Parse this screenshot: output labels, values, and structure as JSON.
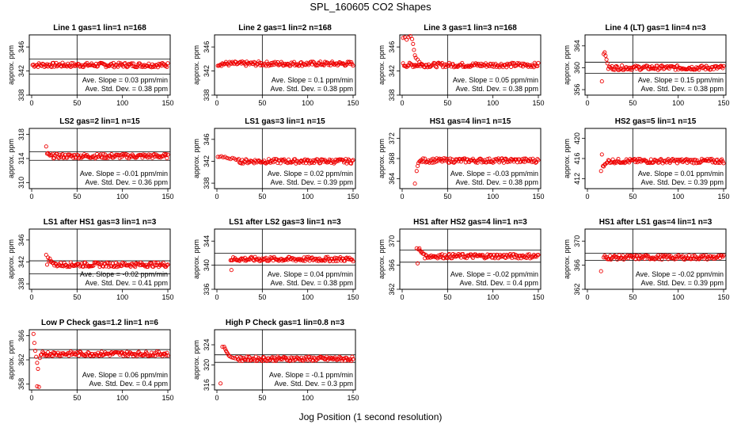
{
  "page": {
    "title": "SPL_160605  CO2 Shapes",
    "xlabel": "Jog Position (1 second resolution)"
  },
  "colors": {
    "points": "#ee0000",
    "axes": "#000000"
  },
  "chart_data": [
    {
      "type": "scatter",
      "title": "Line 1 gas=1 lin=1 n=168",
      "ylabel": "approx. ppm",
      "xlim": [
        0,
        150
      ],
      "ylim": [
        338,
        348
      ],
      "yticks": [
        338,
        342,
        346
      ],
      "xticks": [
        0,
        50,
        100,
        150
      ],
      "hlines": [
        344,
        341.5
      ],
      "vline": 50,
      "slope_text": "Ave. Slope = 0.03  ppm/min",
      "std_text": "Ave. Std. Dev. = 0.38  ppm",
      "x_start": 1,
      "x_end": 150,
      "level": 343
    },
    {
      "type": "scatter",
      "title": "Line 2 gas=1 lin=2 n=168",
      "ylabel": "approx. ppm",
      "xlim": [
        0,
        150
      ],
      "ylim": [
        338,
        348
      ],
      "yticks": [
        338,
        342,
        346
      ],
      "xticks": [
        0,
        50,
        100,
        150
      ],
      "hlines": [],
      "vline": 50,
      "slope_text": "Ave. Slope = 0.1  ppm/min",
      "std_text": "Ave. Std. Dev. = 0.38  ppm",
      "x_start": 1,
      "x_end": 150,
      "level": 343.2
    },
    {
      "type": "scatter",
      "title": "Line 3 gas=1 lin=3 n=168",
      "ylabel": "approx. ppm",
      "xlim": [
        0,
        150
      ],
      "ylim": [
        338,
        348
      ],
      "yticks": [
        338,
        342,
        346
      ],
      "xticks": [
        0,
        50,
        100,
        150
      ],
      "hlines": [],
      "vline": 50,
      "slope_text": "Ave. Slope = 0.05  ppm/min",
      "std_text": "Ave. Std. Dev. = 0.38  ppm",
      "x_start": 1,
      "x_end": 150,
      "level": 343,
      "transient": [
        [
          1,
          347.5
        ],
        [
          3,
          347.6
        ],
        [
          5,
          347.2
        ],
        [
          7,
          347.6
        ],
        [
          9,
          347.8
        ],
        [
          11,
          347.3
        ],
        [
          12,
          346.5
        ],
        [
          13,
          345.5
        ],
        [
          14,
          344.6
        ],
        [
          15,
          344.2
        ],
        [
          17,
          343.9
        ],
        [
          19,
          343.5
        ],
        [
          21,
          343.2
        ]
      ]
    },
    {
      "type": "scatter",
      "title": "Line 4 (LT) gas=1 lin=4 n=3",
      "ylabel": "approx. ppm",
      "xlim": [
        0,
        150
      ],
      "ylim": [
        355,
        366
      ],
      "yticks": [
        356,
        360,
        364
      ],
      "xticks": [
        0,
        50,
        100,
        150
      ],
      "hlines": [
        361,
        359
      ],
      "vline": 50,
      "slope_text": "Ave. Slope = 0.15  ppm/min",
      "std_text": "Ave. Std. Dev. = 0.38  ppm",
      "x_start": 23,
      "x_end": 150,
      "level": 360,
      "transient": [
        [
          16,
          357.5
        ],
        [
          18,
          362.5
        ],
        [
          19,
          362.8
        ],
        [
          20,
          362.2
        ],
        [
          21,
          361.5
        ],
        [
          22,
          360.8
        ]
      ]
    },
    {
      "type": "scatter",
      "title": "LS2 gas=2 lin=1 n=15",
      "ylabel": "approx. ppm",
      "xlim": [
        0,
        150
      ],
      "ylim": [
        309,
        319
      ],
      "yticks": [
        310,
        314,
        318
      ],
      "xticks": [
        0,
        50,
        100,
        150
      ],
      "hlines": [
        315.1,
        313.7
      ],
      "vline": 50,
      "slope_text": "Ave. Slope = -0.01  ppm/min",
      "std_text": "Ave. Std. Dev. = 0.36  ppm",
      "x_start": 21,
      "x_end": 150,
      "level": 314.4,
      "transient": [
        [
          16,
          316
        ],
        [
          17,
          314.8
        ],
        [
          18,
          314.9
        ],
        [
          19,
          314.7
        ],
        [
          20,
          314.5
        ]
      ]
    },
    {
      "type": "scatter",
      "title": "LS1 gas=3 lin=1 n=15",
      "ylabel": "approx. ppm",
      "xlim": [
        0,
        150
      ],
      "ylim": [
        337,
        348
      ],
      "yticks": [
        338,
        342,
        346
      ],
      "xticks": [
        0,
        50,
        100,
        150
      ],
      "hlines": [],
      "vline": 50,
      "slope_text": "Ave. Slope = 0.02  ppm/min",
      "std_text": "Ave. Std. Dev. = 0.39  ppm",
      "x_start": 24,
      "x_end": 150,
      "level": 342,
      "transient": [
        [
          1,
          342.8
        ],
        [
          3,
          342.8
        ],
        [
          5,
          342.9
        ],
        [
          7,
          342.7
        ],
        [
          9,
          342.8
        ],
        [
          11,
          342.6
        ],
        [
          13,
          342.5
        ],
        [
          15,
          342.4
        ],
        [
          17,
          342.6
        ],
        [
          19,
          342.5
        ],
        [
          21,
          342.3
        ],
        [
          23,
          342.2
        ]
      ]
    },
    {
      "type": "scatter",
      "title": "HS1 gas=4 lin=1 n=15",
      "ylabel": "approx. ppm",
      "xlim": [
        0,
        150
      ],
      "ylim": [
        362,
        374
      ],
      "yticks": [
        364,
        368,
        372
      ],
      "xticks": [
        0,
        50,
        100,
        150
      ],
      "hlines": [],
      "vline": 50,
      "slope_text": "Ave. Slope = -0.03  ppm/min",
      "std_text": "Ave. Std. Dev. = 0.38  ppm",
      "x_start": 21,
      "x_end": 150,
      "level": 367.6,
      "transient": [
        [
          14,
          363
        ],
        [
          16,
          365.5
        ],
        [
          17,
          366.5
        ],
        [
          18,
          367.1
        ],
        [
          19,
          367.4
        ],
        [
          20,
          367.5
        ]
      ]
    },
    {
      "type": "scatter",
      "title": "HS2 gas=5 lin=1 n=15",
      "ylabel": "approx. ppm",
      "xlim": [
        0,
        150
      ],
      "ylim": [
        410,
        422
      ],
      "yticks": [
        412,
        416,
        420
      ],
      "xticks": [
        0,
        50,
        100,
        150
      ],
      "hlines": [],
      "vline": 50,
      "slope_text": "Ave. Slope = 0.01  ppm/min",
      "std_text": "Ave. Std. Dev. = 0.39  ppm",
      "x_start": 23,
      "x_end": 150,
      "level": 415.5,
      "transient": [
        [
          15,
          413.5
        ],
        [
          16,
          416.8
        ],
        [
          17,
          414.5
        ],
        [
          18,
          414.4
        ],
        [
          19,
          414.8
        ],
        [
          20,
          414.9
        ],
        [
          21,
          415.1
        ],
        [
          22,
          415.2
        ]
      ]
    },
    {
      "type": "scatter",
      "title": "LS1 after HS1 gas=3 lin=1 n=3",
      "ylabel": "approx. ppm",
      "xlim": [
        0,
        150
      ],
      "ylim": [
        337,
        348
      ],
      "yticks": [
        338,
        342,
        346
      ],
      "xticks": [
        0,
        50,
        100,
        150
      ],
      "hlines": [
        342.2,
        339.8
      ],
      "vline": 50,
      "slope_text": "Ave. Slope = -0.02  ppm/min",
      "std_text": "Ave. Std. Dev. = 0.41  ppm",
      "x_start": 24,
      "x_end": 150,
      "level": 341.5,
      "transient": [
        [
          16,
          343.3
        ],
        [
          17,
          341.5
        ],
        [
          18,
          342.8
        ],
        [
          19,
          342.2
        ],
        [
          20,
          342.6
        ],
        [
          21,
          342.0
        ],
        [
          22,
          342.1
        ],
        [
          23,
          341.8
        ]
      ]
    },
    {
      "type": "scatter",
      "title": "LS1 after LS2 gas=3 lin=1 n=3",
      "ylabel": "approx. ppm",
      "xlim": [
        0,
        150
      ],
      "ylim": [
        336,
        346
      ],
      "yticks": [
        336,
        340,
        344
      ],
      "xticks": [
        0,
        50,
        100,
        150
      ],
      "hlines": [
        342,
        340
      ],
      "vline": 50,
      "slope_text": "Ave. Slope = 0.04  ppm/min",
      "std_text": "Ave. Std. Dev. = 0.38  ppm",
      "x_start": 15,
      "x_end": 150,
      "level": 341,
      "transient": [
        [
          16,
          339.2
        ]
      ]
    },
    {
      "type": "scatter",
      "title": "HS1 after HS2 gas=4 lin=1 n=3",
      "ylabel": "approx. ppm",
      "xlim": [
        0,
        150
      ],
      "ylim": [
        362,
        372
      ],
      "yticks": [
        362,
        366,
        370
      ],
      "xticks": [
        0,
        50,
        100,
        150
      ],
      "hlines": [
        368.5,
        366.5
      ],
      "vline": 50,
      "slope_text": "Ave. Slope = -0.02  ppm/min",
      "std_text": "Ave. Std. Dev. = 0.4  ppm",
      "x_start": 24,
      "x_end": 150,
      "level": 367.5,
      "transient": [
        [
          16,
          368.8
        ],
        [
          17,
          366.3
        ],
        [
          18,
          368.6
        ],
        [
          19,
          368.8
        ],
        [
          20,
          368.4
        ],
        [
          21,
          368.1
        ],
        [
          22,
          368.2
        ],
        [
          23,
          367.9
        ]
      ]
    },
    {
      "type": "scatter",
      "title": "HS1 after LS1 gas=4 lin=1 n=3",
      "ylabel": "approx. ppm",
      "xlim": [
        0,
        150
      ],
      "ylim": [
        362,
        372
      ],
      "yticks": [
        362,
        366,
        370
      ],
      "xticks": [
        0,
        50,
        100,
        150
      ],
      "hlines": [
        368,
        366.8
      ],
      "vline": 50,
      "slope_text": "Ave. Slope = -0.02  ppm/min",
      "std_text": "Ave. Std. Dev. = 0.39  ppm",
      "x_start": 18,
      "x_end": 150,
      "level": 367.3,
      "transient": [
        [
          15,
          365
        ]
      ]
    },
    {
      "type": "scatter",
      "title": "Low P Check gas=1.2 lin=1 n=6",
      "ylabel": "approx. ppm",
      "xlim": [
        0,
        150
      ],
      "ylim": [
        357,
        367
      ],
      "yticks": [
        358,
        362,
        366
      ],
      "xticks": [
        0,
        50,
        100,
        150
      ],
      "hlines": [
        363.7,
        362.3
      ],
      "vline": 50,
      "slope_text": "Ave. Slope = 0.06  ppm/min",
      "std_text": "Ave. Std. Dev. = 0.4  ppm",
      "x_start": 12,
      "x_end": 150,
      "level": 363,
      "transient": [
        [
          2,
          366.3
        ],
        [
          3,
          364.8
        ],
        [
          4,
          363.5
        ],
        [
          5,
          362.5
        ],
        [
          6,
          361.5
        ],
        [
          7,
          360.5
        ],
        [
          8,
          357.5
        ],
        [
          6,
          357.6
        ],
        [
          9,
          362.3
        ],
        [
          10,
          362.8
        ],
        [
          11,
          362.9
        ]
      ]
    },
    {
      "type": "scatter",
      "title": "High P Check gas=1 lin=0.8 n=3",
      "ylabel": "approx. ppm",
      "xlim": [
        0,
        150
      ],
      "ylim": [
        315,
        327
      ],
      "yticks": [
        316,
        320,
        324
      ],
      "xticks": [
        0,
        50,
        100,
        150
      ],
      "hlines": [
        322,
        320.5
      ],
      "vline": 50,
      "slope_text": "Ave. Slope = -0.1  ppm/min",
      "std_text": "Ave. Std. Dev. = 0.3  ppm",
      "x_start": 22,
      "x_end": 150,
      "level": 321.2,
      "transient": [
        [
          4,
          316.3
        ],
        [
          6,
          323.6
        ],
        [
          8,
          323.6
        ],
        [
          9,
          323.2
        ],
        [
          10,
          322.8
        ],
        [
          11,
          322.5
        ],
        [
          12,
          322.2
        ],
        [
          13,
          321.9
        ],
        [
          14,
          321.7
        ],
        [
          16,
          321.5
        ],
        [
          18,
          321.4
        ],
        [
          20,
          321.3
        ]
      ]
    }
  ]
}
